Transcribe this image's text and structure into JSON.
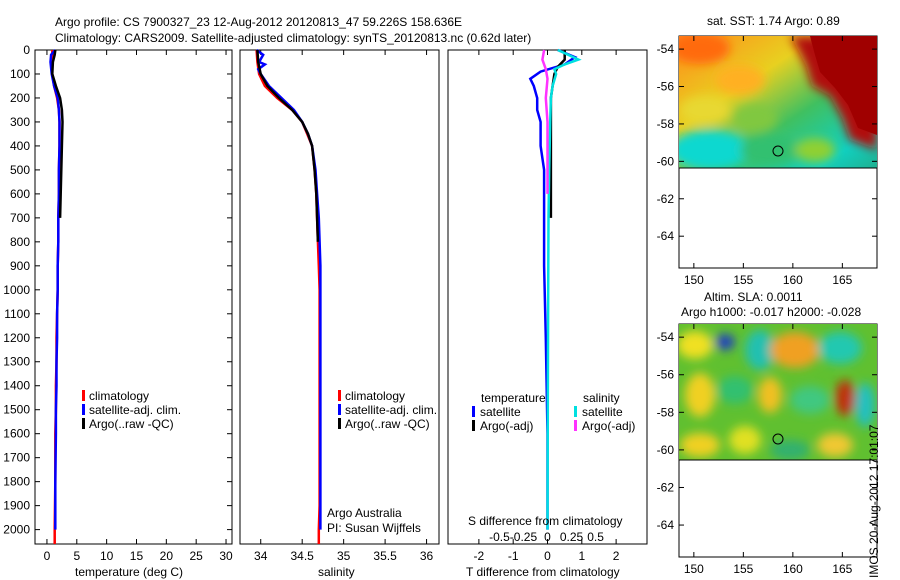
{
  "title_line1": "Argo profile: CS 7900327_23 12-Aug-2012 20120813_47 59.226S 158.636E",
  "title_line2": "Climatology: CARS2009. Satellite-adjusted climatology: synTS_20120813.nc (0.62d later)",
  "stamp": "IMOS 20-Aug-2012 17:01:07",
  "colors": {
    "climatology": "#ff0000",
    "satellite": "#0000ff",
    "argo": "#000000",
    "s_satellite": "#00e0e0",
    "s_argo": "#ff33ff"
  },
  "depth_ticks": [
    "0",
    "100",
    "200",
    "300",
    "400",
    "500",
    "600",
    "700",
    "800",
    "900",
    "1000",
    "1100",
    "1200",
    "1300",
    "1400",
    "1500",
    "1600",
    "1700",
    "1800",
    "1900",
    "2000"
  ],
  "chart_data": [
    {
      "type": "line",
      "id": "temperature",
      "xlabel": "temperature (deg C)",
      "xlim": [
        -2,
        31
      ],
      "ylim": [
        0,
        2060
      ],
      "y_reversed": true,
      "xticks": [
        "0",
        "5",
        "10",
        "15",
        "20",
        "25",
        "30"
      ],
      "legend": [
        "climatology",
        "satellite-adj. clim.",
        "Argo(..raw -QC)"
      ],
      "series": [
        {
          "key": "climatology",
          "color": "#ff0000",
          "x": [
            0.9,
            0.9,
            0.7,
            0.9,
            1.2,
            1.7,
            2.0,
            2.1,
            2.1,
            2.0,
            2.0,
            1.9,
            1.9,
            1.8,
            1.8,
            1.7,
            1.6,
            1.6,
            1.5,
            1.5,
            1.4,
            1.4,
            1.3,
            1.3
          ],
          "y": [
            0,
            20,
            50,
            100,
            150,
            200,
            250,
            300,
            400,
            500,
            600,
            700,
            800,
            900,
            1000,
            1100,
            1200,
            1300,
            1400,
            1500,
            1600,
            1800,
            2000,
            2060
          ]
        },
        {
          "key": "satellite-adj. clim.",
          "color": "#0000ff",
          "x": [
            1.4,
            0.7,
            0.6,
            0.8,
            1.2,
            1.8,
            2.0,
            2.1,
            2.1,
            2.0,
            2.0,
            1.9,
            1.9,
            1.8,
            1.8,
            1.7,
            1.7,
            1.6,
            1.6,
            1.5,
            1.5,
            1.4,
            1.4
          ],
          "y": [
            0,
            20,
            50,
            100,
            150,
            200,
            250,
            300,
            400,
            500,
            600,
            700,
            800,
            900,
            1000,
            1100,
            1200,
            1300,
            1400,
            1500,
            1600,
            1800,
            2000
          ]
        },
        {
          "key": "Argo(..raw -QC)",
          "color": "#000000",
          "x": [
            1.4,
            1.3,
            1.0,
            0.9,
            1.5,
            2.2,
            2.5,
            2.6,
            2.5,
            2.4,
            2.3,
            2.2
          ],
          "y": [
            0,
            20,
            50,
            100,
            150,
            200,
            250,
            300,
            400,
            500,
            600,
            700
          ]
        }
      ]
    },
    {
      "type": "line",
      "id": "salinity",
      "xlabel": "salinity",
      "xlim": [
        33.75,
        36.15
      ],
      "ylim": [
        0,
        2060
      ],
      "y_reversed": true,
      "xticks": [
        "34",
        "34.5",
        "35",
        "35.5",
        "36"
      ],
      "legend": [
        "climatology",
        "satellite-adj. clim.",
        "Argo(..raw -QC)"
      ],
      "annotation": [
        "Argo Australia",
        "PI: Susan Wijffels"
      ],
      "series": [
        {
          "key": "climatology",
          "color": "#ff0000",
          "x": [
            33.95,
            33.96,
            33.98,
            34.05,
            34.2,
            34.38,
            34.5,
            34.56,
            34.62,
            34.65,
            34.67,
            34.68,
            34.69,
            34.7,
            34.71,
            34.71,
            34.71,
            34.71,
            34.71,
            34.71,
            34.7,
            34.7
          ],
          "y": [
            0,
            50,
            100,
            150,
            200,
            250,
            300,
            350,
            400,
            500,
            600,
            700,
            800,
            900,
            1000,
            1200,
            1400,
            1600,
            1800,
            1900,
            2000,
            2060
          ]
        },
        {
          "key": "satellite-adj. clim.",
          "color": "#0000ff",
          "x": [
            33.95,
            34.03,
            33.98,
            34.05,
            33.97,
            34.0,
            34.1,
            34.25,
            34.4,
            34.5,
            34.57,
            34.62,
            34.66,
            34.68,
            34.7,
            34.71,
            34.72,
            34.72,
            34.72,
            34.72,
            34.72,
            34.72
          ],
          "y": [
            0,
            20,
            50,
            60,
            80,
            100,
            150,
            200,
            250,
            300,
            350,
            400,
            500,
            600,
            700,
            800,
            900,
            1000,
            1200,
            1400,
            1800,
            2000
          ]
        },
        {
          "key": "Argo(..raw -QC)",
          "color": "#000000",
          "x": [
            33.96,
            33.97,
            34.0,
            34.08,
            34.22,
            34.38,
            34.5,
            34.57,
            34.62,
            34.65,
            34.67,
            34.68,
            34.69
          ],
          "y": [
            0,
            50,
            100,
            150,
            200,
            250,
            300,
            350,
            400,
            500,
            600,
            700,
            800
          ]
        }
      ]
    },
    {
      "type": "line",
      "id": "difference",
      "xlabel": "T difference from climatology",
      "xlabel_top": "S difference from climatology",
      "xlim": [
        -2.9,
        2.9
      ],
      "ylim": [
        0,
        2060
      ],
      "y_reversed": true,
      "xticks": [
        "-2",
        "-1",
        "0",
        "1",
        "2"
      ],
      "xticks_top": [
        "-0.5",
        "-0.25",
        "0",
        "0.25",
        "0.5"
      ],
      "legend_left_title": "temperature",
      "legend_left": [
        "satellite",
        "Argo(-adj)"
      ],
      "legend_right_title": "salinity",
      "legend_right": [
        "satellite",
        "Argo(-adj)"
      ],
      "series": [
        {
          "key": "T satellite",
          "color": "#0000ff",
          "x": [
            0.3,
            0.8,
            0.5,
            -0.2,
            -0.5,
            -0.4,
            -0.3,
            -0.3,
            -0.2,
            -0.2,
            -0.1,
            -0.1,
            -0.1,
            -0.05,
            0,
            0
          ],
          "y": [
            0,
            30,
            60,
            90,
            120,
            150,
            200,
            250,
            300,
            400,
            500,
            700,
            900,
            1200,
            1600,
            2000
          ]
        },
        {
          "key": "T Argo(-adj)",
          "color": "#000000",
          "x": [
            0.5,
            0.5,
            0.3,
            0.2,
            0.15,
            0.1,
            0.1,
            0.1,
            0.1
          ],
          "y": [
            0,
            40,
            70,
            100,
            150,
            200,
            300,
            500,
            700
          ]
        },
        {
          "key": "S satellite",
          "color": "#00e0e0",
          "x": [
            0.3,
            0.6,
            0.9,
            0.5,
            0.2,
            0.25,
            0.15,
            0.1,
            0.08,
            0.05,
            0.03,
            0.02,
            0.01,
            0.0
          ],
          "y": [
            0,
            20,
            40,
            60,
            80,
            100,
            150,
            200,
            300,
            500,
            700,
            1000,
            1500,
            2000
          ]
        },
        {
          "key": "S Argo(-adj)",
          "color": "#ff33ff",
          "x": [
            -0.1,
            -0.15,
            -0.05,
            0.0,
            -0.05,
            0.0,
            0.0
          ],
          "y": [
            0,
            40,
            80,
            120,
            200,
            300,
            600
          ]
        }
      ]
    },
    {
      "type": "heatmap",
      "id": "sst_map",
      "title": "sat. SST: 1.74 Argo: 0.89",
      "xlim": [
        148.5,
        168.5
      ],
      "ylim": [
        -65.7,
        -53.3
      ],
      "xticks": [
        "150",
        "155",
        "160",
        "165"
      ],
      "yticks": [
        "-54",
        "-56",
        "-58",
        "-60",
        "-62",
        "-64"
      ],
      "data_extent_lat": [
        -60,
        -53.3
      ],
      "marker": {
        "lon": 158.6,
        "lat": -59.2
      }
    },
    {
      "type": "heatmap",
      "id": "sla_map",
      "title_line1": "Altim. SLA: 0.0011",
      "title_line2": "Argo h1000: -0.017 h2000: -0.028",
      "xlim": [
        148.5,
        168.5
      ],
      "ylim": [
        -65.7,
        -53.3
      ],
      "xticks": [
        "150",
        "155",
        "160",
        "165"
      ],
      "yticks": [
        "-54",
        "-56",
        "-58",
        "-60",
        "-62",
        "-64"
      ],
      "data_extent_lat": [
        -60,
        -53.3
      ],
      "marker": {
        "lon": 158.6,
        "lat": -59.2
      }
    }
  ]
}
